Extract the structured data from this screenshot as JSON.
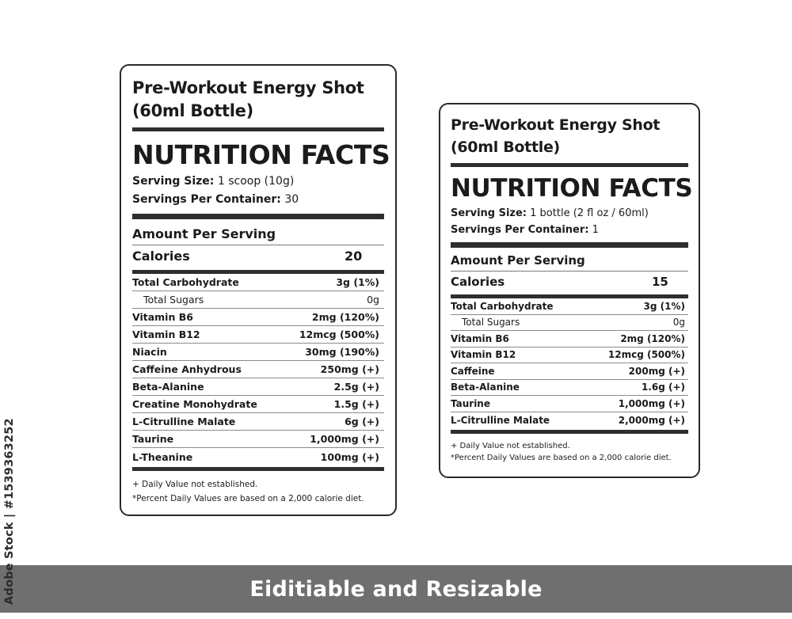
{
  "labels": [
    {
      "product_title_line1": "Pre-Workout Energy Shot",
      "product_title_line2": "(60ml Bottle)",
      "heading": "NUTRITION FACTS",
      "serving_size_label": "Serving Size:",
      "serving_size_value": "1 scoop (10g)",
      "servings_per_container_label": "Servings Per Container:",
      "servings_per_container_value": "30",
      "amount_per_serving": "Amount Per Serving",
      "calories_label": "Calories",
      "calories_value": "20",
      "nutrients": [
        {
          "name": "Total Carbohydrate",
          "value": "3g (1%)"
        },
        {
          "name": "Total Sugars",
          "value": "0g"
        },
        {
          "name": "Vitamin B6",
          "value": "2mg (120%)"
        },
        {
          "name": "Vitamin B12",
          "value": "12mcg (500%)"
        },
        {
          "name": "Niacin",
          "value": "30mg (190%)"
        },
        {
          "name": "Caffeine Anhydrous",
          "value": "250mg (+)"
        },
        {
          "name": "Beta-Alanine",
          "value": "2.5g (+)"
        },
        {
          "name": "Creatine Monohydrate",
          "value": "1.5g (+)"
        },
        {
          "name": "L-Citrulline Malate",
          "value": "6g (+)"
        },
        {
          "name": "Taurine",
          "value": "1,000mg (+)"
        },
        {
          "name": "L-Theanine",
          "value": "100mg (+)"
        }
      ],
      "footnote1": "+ Daily Value not established.",
      "footnote2": "*Percent Daily Values are based on a 2,000 calorie diet."
    },
    {
      "product_title_line1": "Pre-Workout Energy Shot",
      "product_title_line2": "(60ml Bottle)",
      "heading": "NUTRITION FACTS",
      "serving_size_label": "Serving Size:",
      "serving_size_value": "1 bottle (2 fl oz / 60ml)",
      "servings_per_container_label": "Servings Per Container:",
      "servings_per_container_value": "1",
      "amount_per_serving": "Amount Per Serving",
      "calories_label": "Calories",
      "calories_value": "15",
      "nutrients": [
        {
          "name": "Total Carbohydrate",
          "value": "3g (1%)"
        },
        {
          "name": "Total Sugars",
          "value": "0g"
        },
        {
          "name": "Vitamin B6",
          "value": "2mg (120%)"
        },
        {
          "name": "Vitamin B12",
          "value": "12mcg (500%)"
        },
        {
          "name": "Caffeine",
          "value": "200mg (+)"
        },
        {
          "name": "Beta-Alanine",
          "value": "1.6g (+)"
        },
        {
          "name": "Taurine",
          "value": "1,000mg (+)"
        },
        {
          "name": "L-Citrulline Malate",
          "value": "2,000mg (+)"
        }
      ],
      "footnote1": "+ Daily Value not established.",
      "footnote2": "*Percent Daily Values are based on a 2,000 calorie diet."
    }
  ],
  "banner": {
    "text": "Eiditiable and Resizable"
  },
  "watermark": {
    "stock_id": "Adobe Stock | #1539363252"
  }
}
